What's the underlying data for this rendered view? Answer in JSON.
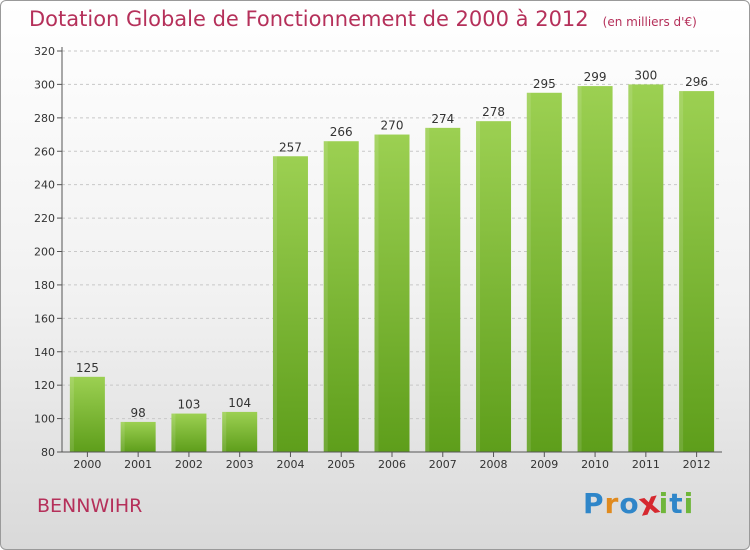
{
  "title": "Dotation Globale de Fonctionnement de 2000 à 2012",
  "subtitle": "(en milliers d'€)",
  "commune": "BENNWIHR",
  "logo": {
    "text": "Proxiti",
    "letters": [
      {
        "char": "P",
        "color": "#2f86c9"
      },
      {
        "char": "r",
        "color": "#e08a1e"
      },
      {
        "char": "o",
        "color": "#2f86c9"
      },
      {
        "char": "x",
        "color": "#d6282f"
      },
      {
        "char": "i",
        "color": "#6fb63a"
      },
      {
        "char": "t",
        "color": "#2f86c9"
      },
      {
        "char": "i",
        "color": "#6fb63a"
      }
    ]
  },
  "colors": {
    "title": "#b5305a",
    "bar_light": "#9cd052",
    "bar_dark": "#5e9e1b",
    "axis": "#555555"
  },
  "chart_data": {
    "type": "bar",
    "categories": [
      "2000",
      "2001",
      "2002",
      "2003",
      "2004",
      "2005",
      "2006",
      "2007",
      "2008",
      "2009",
      "2010",
      "2011",
      "2012"
    ],
    "values": [
      125,
      98,
      103,
      104,
      257,
      266,
      270,
      274,
      278,
      295,
      299,
      300,
      296
    ],
    "ylim": [
      80,
      320
    ],
    "yticks": [
      80,
      100,
      120,
      140,
      160,
      180,
      200,
      220,
      240,
      260,
      280,
      300,
      320
    ],
    "grid": true,
    "legend": "none"
  }
}
